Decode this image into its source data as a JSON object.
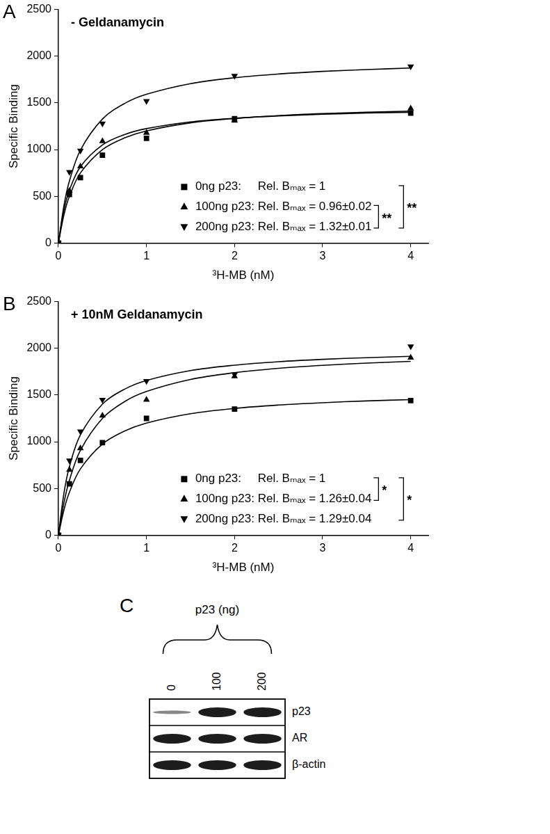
{
  "chart_data": [
    {
      "panel": "A",
      "type": "scatter",
      "title": "- Geldanamycin",
      "x_label": "³H-MB (nM)",
      "y_label": "Specific Binding",
      "xlim": [
        0,
        4.2
      ],
      "ylim": [
        0,
        2500
      ],
      "xticks": [
        0,
        1,
        2,
        3,
        4
      ],
      "yticks": [
        0,
        500,
        1000,
        1500,
        2000,
        2500
      ],
      "grid": false,
      "legend": "lower right",
      "series": [
        {
          "name": "0ng p23:     Rel. Bₘₐₓ = 1",
          "color": "#000000",
          "marker": "square",
          "x": [
            0,
            0.125,
            0.25,
            0.5,
            1,
            2,
            4
          ],
          "values": [
            0,
            520,
            700,
            940,
            1120,
            1330,
            1390
          ],
          "fit_x": [
            0,
            0.0625,
            0.125,
            0.25,
            0.5,
            0.75,
            1,
            1.5,
            2,
            2.5,
            3,
            3.5,
            4
          ],
          "fit_values": [
            0,
            300,
            500,
            750,
            1000,
            1125,
            1200,
            1286,
            1333,
            1364,
            1385,
            1400,
            1412
          ]
        },
        {
          "name": "100ng p23: Rel. Bₘₐₓ = 0.96±0.02",
          "color": "#000000",
          "marker": "triangle",
          "x": [
            0,
            0.125,
            0.25,
            0.5,
            1,
            2,
            4
          ],
          "values": [
            0,
            560,
            820,
            1090,
            1180,
            1310,
            1440
          ],
          "fit_x": [
            0,
            0.0625,
            0.125,
            0.25,
            0.5,
            0.75,
            1,
            1.5,
            2,
            2.5,
            3,
            3.5,
            4
          ],
          "fit_values": [
            0,
            350,
            565,
            817,
            1050,
            1161,
            1225,
            1297,
            1336,
            1361,
            1378,
            1391,
            1400
          ]
        },
        {
          "name": "200ng p23: Rel. Bₘₐₓ = 1.32±0.01",
          "color": "#000000",
          "marker": "triangle_down",
          "x": [
            0,
            0.125,
            0.25,
            0.5,
            1,
            2,
            4
          ],
          "values": [
            0,
            760,
            990,
            1280,
            1520,
            1790,
            1890
          ],
          "fit_x": [
            0,
            0.0625,
            0.125,
            0.25,
            0.5,
            0.75,
            1,
            1.5,
            2,
            2.5,
            3,
            3.5,
            4
          ],
          "fit_values": [
            0,
            398,
            663,
            995,
            1327,
            1493,
            1592,
            1706,
            1769,
            1809,
            1837,
            1857,
            1873
          ]
        }
      ],
      "significance": [
        {
          "series": [
            1,
            2
          ],
          "label": "**"
        },
        {
          "series": [
            0,
            2
          ],
          "label": "**"
        }
      ]
    },
    {
      "panel": "B",
      "type": "scatter",
      "title": "+ 10nM Geldanamycin",
      "x_label": "³H-MB (nM)",
      "y_label": "Specific Binding",
      "xlim": [
        0,
        4.2
      ],
      "ylim": [
        0,
        2500
      ],
      "xticks": [
        0,
        1,
        2,
        3,
        4
      ],
      "yticks": [
        0,
        500,
        1000,
        1500,
        2000,
        2500
      ],
      "grid": false,
      "legend": "lower right",
      "series": [
        {
          "name": "0ng p23:     Rel. Bₘₐₓ = 1",
          "color": "#000000",
          "marker": "square",
          "x": [
            0,
            0.125,
            0.25,
            0.5,
            1,
            2,
            4
          ],
          "values": [
            0,
            550,
            800,
            990,
            1250,
            1350,
            1440
          ],
          "fit_x": [
            0,
            0.0625,
            0.125,
            0.25,
            0.5,
            0.75,
            1,
            1.5,
            2,
            2.5,
            3,
            3.5,
            4
          ],
          "fit_values": [
            0,
            269,
            459,
            709,
            975,
            1114,
            1200,
            1300,
            1357,
            1393,
            1418,
            1437,
            1451
          ]
        },
        {
          "name": "100ng p23: Rel. Bₘₐₓ = 1.26±0.04",
          "color": "#000000",
          "marker": "triangle",
          "x": [
            0,
            0.125,
            0.25,
            0.5,
            1,
            2,
            4
          ],
          "values": [
            0,
            700,
            930,
            1280,
            1450,
            1700,
            1900
          ],
          "fit_x": [
            0,
            0.0625,
            0.125,
            0.25,
            0.5,
            0.75,
            1,
            1.5,
            2,
            2.5,
            3,
            3.5,
            4
          ],
          "fit_values": [
            0,
            345,
            588,
            909,
            1250,
            1429,
            1538,
            1667,
            1739,
            1786,
            1818,
            1842,
            1860
          ]
        },
        {
          "name": "200ng p23: Rel. Bₘₐₓ = 1.29±0.04",
          "color": "#000000",
          "marker": "triangle_down",
          "x": [
            0,
            0.125,
            0.25,
            0.5,
            1,
            2,
            4
          ],
          "values": [
            0,
            800,
            1110,
            1450,
            1650,
            1720,
            2020
          ],
          "fit_x": [
            0,
            0.0625,
            0.125,
            0.25,
            0.5,
            0.75,
            1,
            1.5,
            2,
            2.5,
            3,
            3.5,
            4
          ],
          "fit_values": [
            0,
            447,
            733,
            1074,
            1403,
            1562,
            1656,
            1762,
            1820,
            1857,
            1882,
            1900,
            1914
          ]
        }
      ],
      "significance": [
        {
          "series": [
            0,
            1
          ],
          "label": "*"
        },
        {
          "series": [
            0,
            2
          ],
          "label": "*"
        }
      ]
    }
  ],
  "blot": {
    "panel": "C",
    "header": "p23 (ng)",
    "lanes": [
      "0",
      "100",
      "200"
    ],
    "rows": [
      {
        "name": "p23",
        "intensity": [
          0.25,
          1,
          1
        ]
      },
      {
        "name": "AR",
        "intensity": [
          1,
          1,
          1
        ]
      },
      {
        "name": "β-actin",
        "intensity": [
          1,
          1,
          1
        ]
      }
    ]
  }
}
